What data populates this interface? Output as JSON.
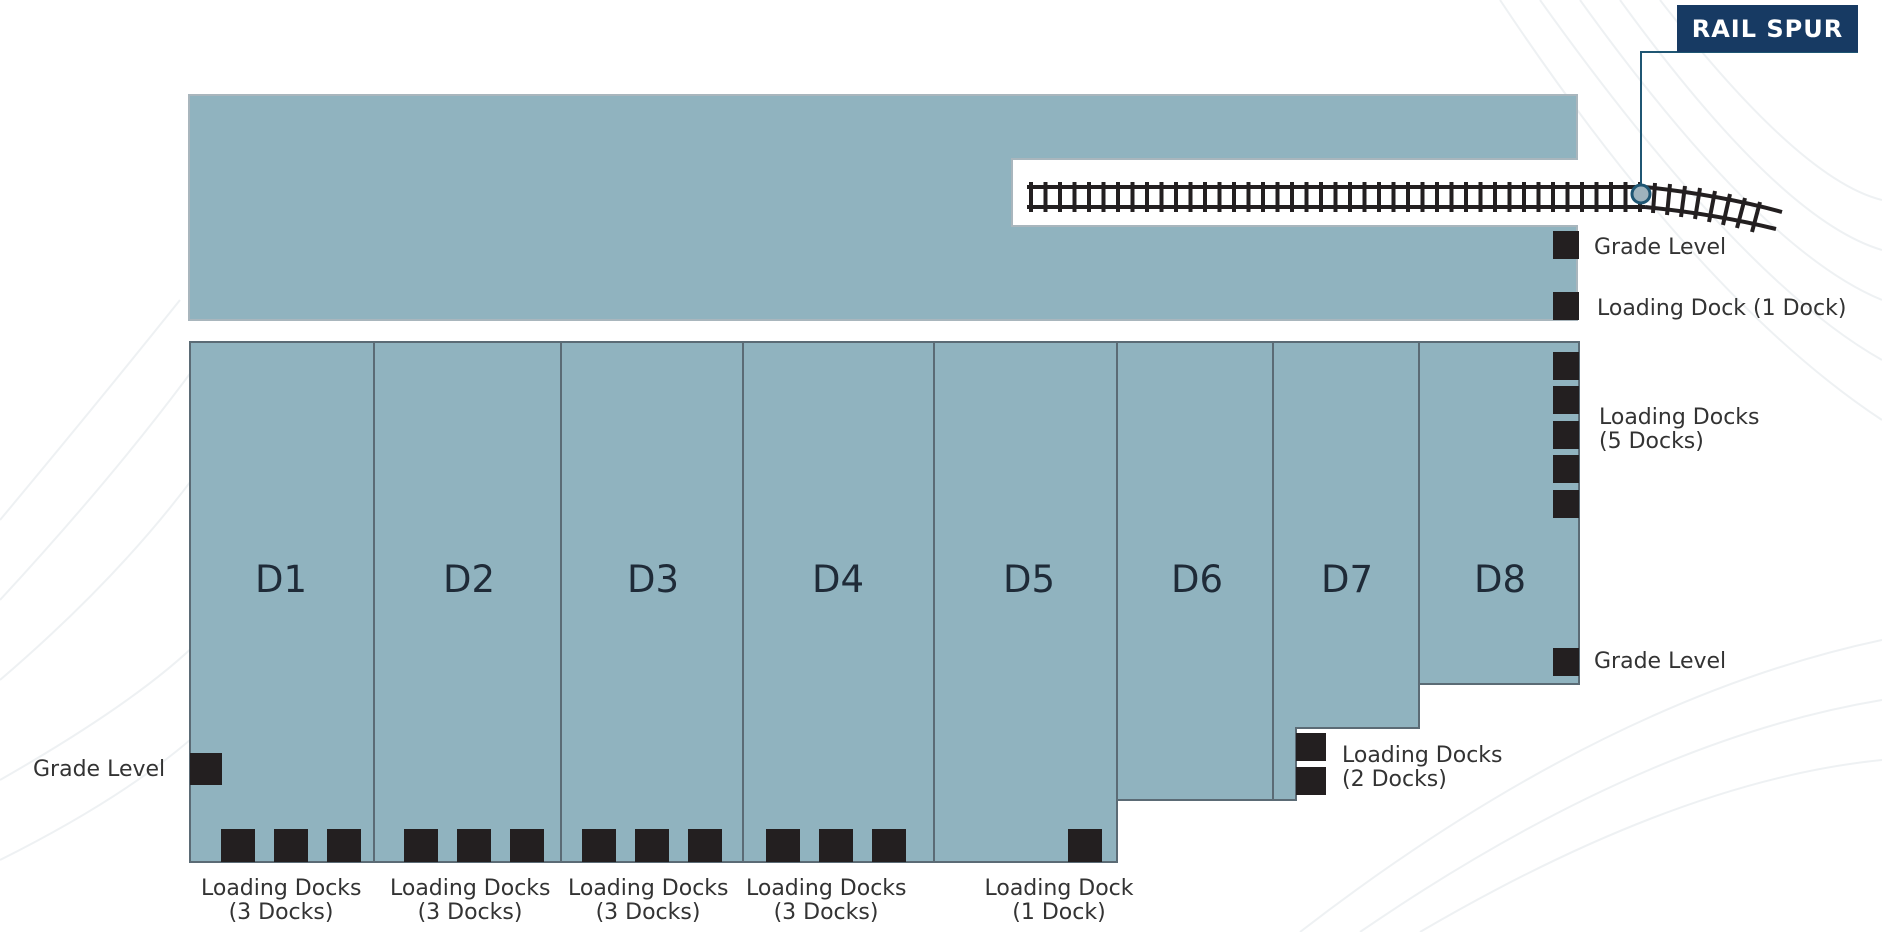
{
  "legend": {
    "rail_spur": "RAIL SPUR"
  },
  "units": [
    "D1",
    "D2",
    "D3",
    "D4",
    "D5",
    "D6",
    "D7",
    "D8"
  ],
  "labels": {
    "grade_level_top": "Grade Level",
    "loading_dock_1_right": "Loading Dock (1 Dock)",
    "loading_docks_5_line1": "Loading Docks",
    "loading_docks_5_line2": "(5 Docks)",
    "grade_level_d8": "Grade Level",
    "loading_docks_2_line1": "Loading Docks",
    "loading_docks_2_line2": "(2 Docks)",
    "grade_level_d1": "Grade Level",
    "bottom": [
      {
        "line1": "Loading Docks",
        "line2": "(3 Docks)"
      },
      {
        "line1": "Loading Docks",
        "line2": "(3 Docks)"
      },
      {
        "line1": "Loading Docks",
        "line2": "(3 Docks)"
      },
      {
        "line1": "Loading Docks",
        "line2": "(3 Docks)"
      },
      {
        "line1": "Loading Dock",
        "line2": "(1 Dock)"
      }
    ]
  },
  "colors": {
    "building_fill": "#90b3bf",
    "building_stroke": "#5b6b75",
    "dock": "#231f20",
    "rail": "#231f20",
    "badge": "#173a63",
    "leader": "#1f5673"
  }
}
